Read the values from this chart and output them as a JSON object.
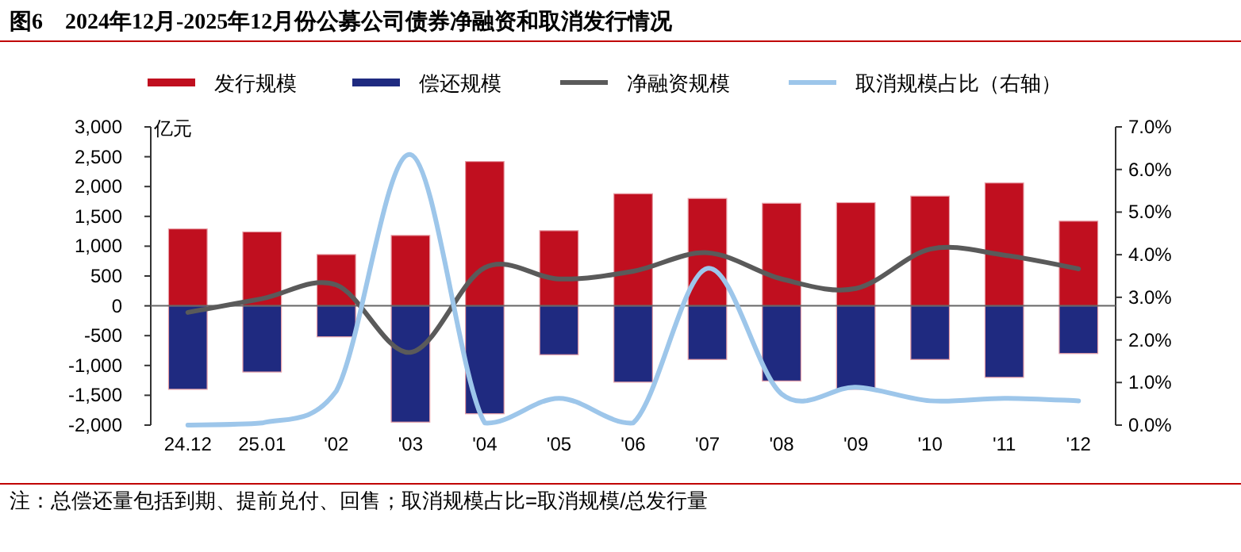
{
  "chart_data": {
    "type": "bar",
    "title": "图6　2024年12月-2025年12月份公募公司债券净融资和取消发行情况",
    "ylabel": "亿元",
    "legend": "top",
    "stacked": true,
    "categories": [
      "24.12",
      "25.01",
      "'02",
      "'03",
      "'04",
      "'05",
      "'06",
      "'07",
      "'08",
      "'09",
      "'10",
      "'11",
      "'12"
    ],
    "series": [
      {
        "name": "发行规模",
        "color": "#c00f1f",
        "values": [
          1290,
          1240,
          860,
          1180,
          2420,
          1260,
          1880,
          1800,
          1720,
          1730,
          1840,
          2060,
          1420
        ]
      },
      {
        "name": "偿还规模",
        "color": "#1f2a80",
        "values": [
          -1400,
          -1110,
          -520,
          -1950,
          -1810,
          -820,
          -1280,
          -900,
          -1260,
          -1400,
          -900,
          -1200,
          -800
        ]
      },
      {
        "name": "净融资规模",
        "type": "line",
        "color": "#5a5a5a",
        "values": [
          -110,
          120,
          350,
          -780,
          640,
          450,
          580,
          890,
          450,
          290,
          950,
          850,
          620
        ]
      },
      {
        "name": "取消规模占比（右轴）",
        "type": "line",
        "axis": "y2",
        "color": "#9dc6ea",
        "values": [
          0.0,
          0.05,
          0.8,
          6.35,
          0.05,
          0.63,
          0.05,
          3.68,
          0.73,
          0.89,
          0.57,
          0.63,
          0.57
        ]
      }
    ],
    "ylim": [
      -2000,
      3000
    ],
    "yticks": [
      {
        "value": -2000,
        "label": "-2,000"
      },
      {
        "value": -1500,
        "label": "-1,500"
      },
      {
        "value": -1000,
        "label": "-1,000"
      },
      {
        "value": -500,
        "label": "-500"
      },
      0,
      {
        "value": 500,
        "label": "500"
      },
      {
        "value": 1000,
        "label": "1,000"
      },
      {
        "value": 1500,
        "label": "1,500"
      },
      {
        "value": 2000,
        "label": "2,000"
      },
      {
        "value": 2500,
        "label": "2,500"
      },
      {
        "value": 3000,
        "label": "3,000"
      }
    ],
    "y2lim": [
      0,
      7
    ],
    "y2ticks": [
      {
        "value": 0,
        "label": "0.0%"
      },
      {
        "value": 1,
        "label": "1.0%"
      },
      {
        "value": 2,
        "label": "2.0%"
      },
      {
        "value": 3,
        "label": "3.0%"
      },
      {
        "value": 4,
        "label": "4.0%"
      },
      {
        "value": 5,
        "label": "5.0%"
      },
      {
        "value": 6,
        "label": "6.0%"
      },
      {
        "value": 7,
        "label": "7.0%"
      }
    ],
    "annotations": [
      "注：总偿还量包括到期、提前兑付、回售；取消规模占比=取消规模/总发行量"
    ]
  }
}
